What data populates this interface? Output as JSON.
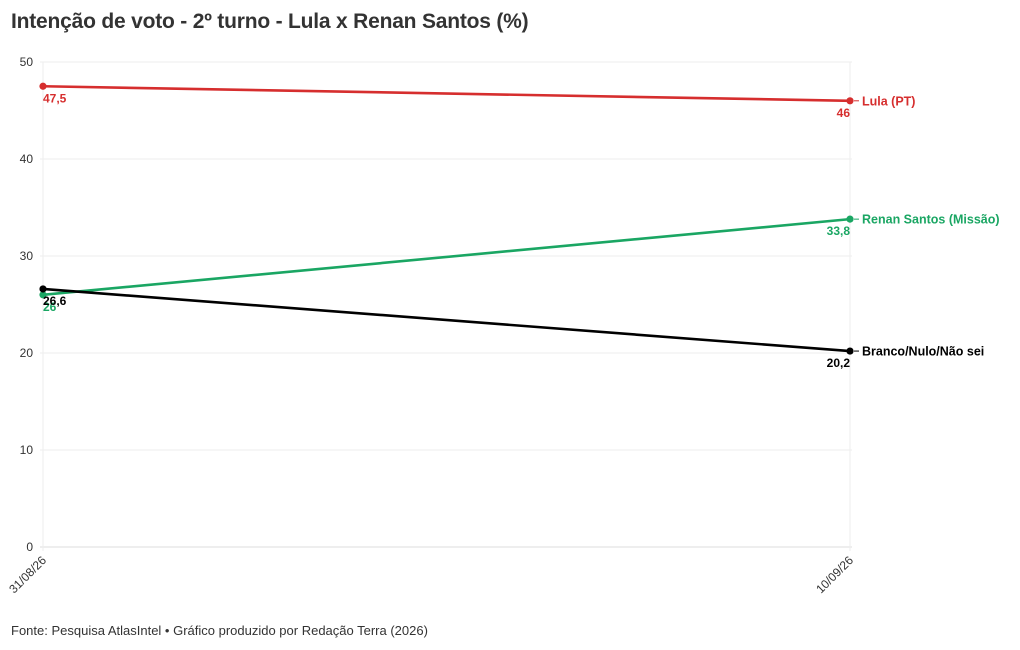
{
  "header": {
    "title": "Intenção de voto - 2º turno - Lula x Renan Santos (%)"
  },
  "footer": {
    "source": "Fonte: Pesquisa AtlasIntel • Gráfico produzido por Redação Terra (2026)"
  },
  "chart_data": {
    "type": "line",
    "title": "Intenção de voto - 2º turno - Lula x Renan Santos (%)",
    "xlabel": "",
    "ylabel": "",
    "x": [
      "31/08/26",
      "10/09/26"
    ],
    "ylim": [
      0,
      50
    ],
    "yticks": [
      0,
      10,
      20,
      30,
      40,
      50
    ],
    "grid": true,
    "legend": "direct labels at line ends (right)",
    "series": [
      {
        "name": "Lula (PT)",
        "values": [
          47.5,
          46
        ],
        "labels": [
          "47,5",
          "46"
        ],
        "color": "#d62e2e"
      },
      {
        "name": "Renan Santos (Missão)",
        "values": [
          26,
          33.8
        ],
        "labels": [
          "26",
          "33,8"
        ],
        "color": "#1aa663"
      },
      {
        "name": "Branco/Nulo/Não sei",
        "values": [
          26.6,
          20.2
        ],
        "labels": [
          "26,6",
          "20,2"
        ],
        "color": "#000000"
      }
    ]
  }
}
